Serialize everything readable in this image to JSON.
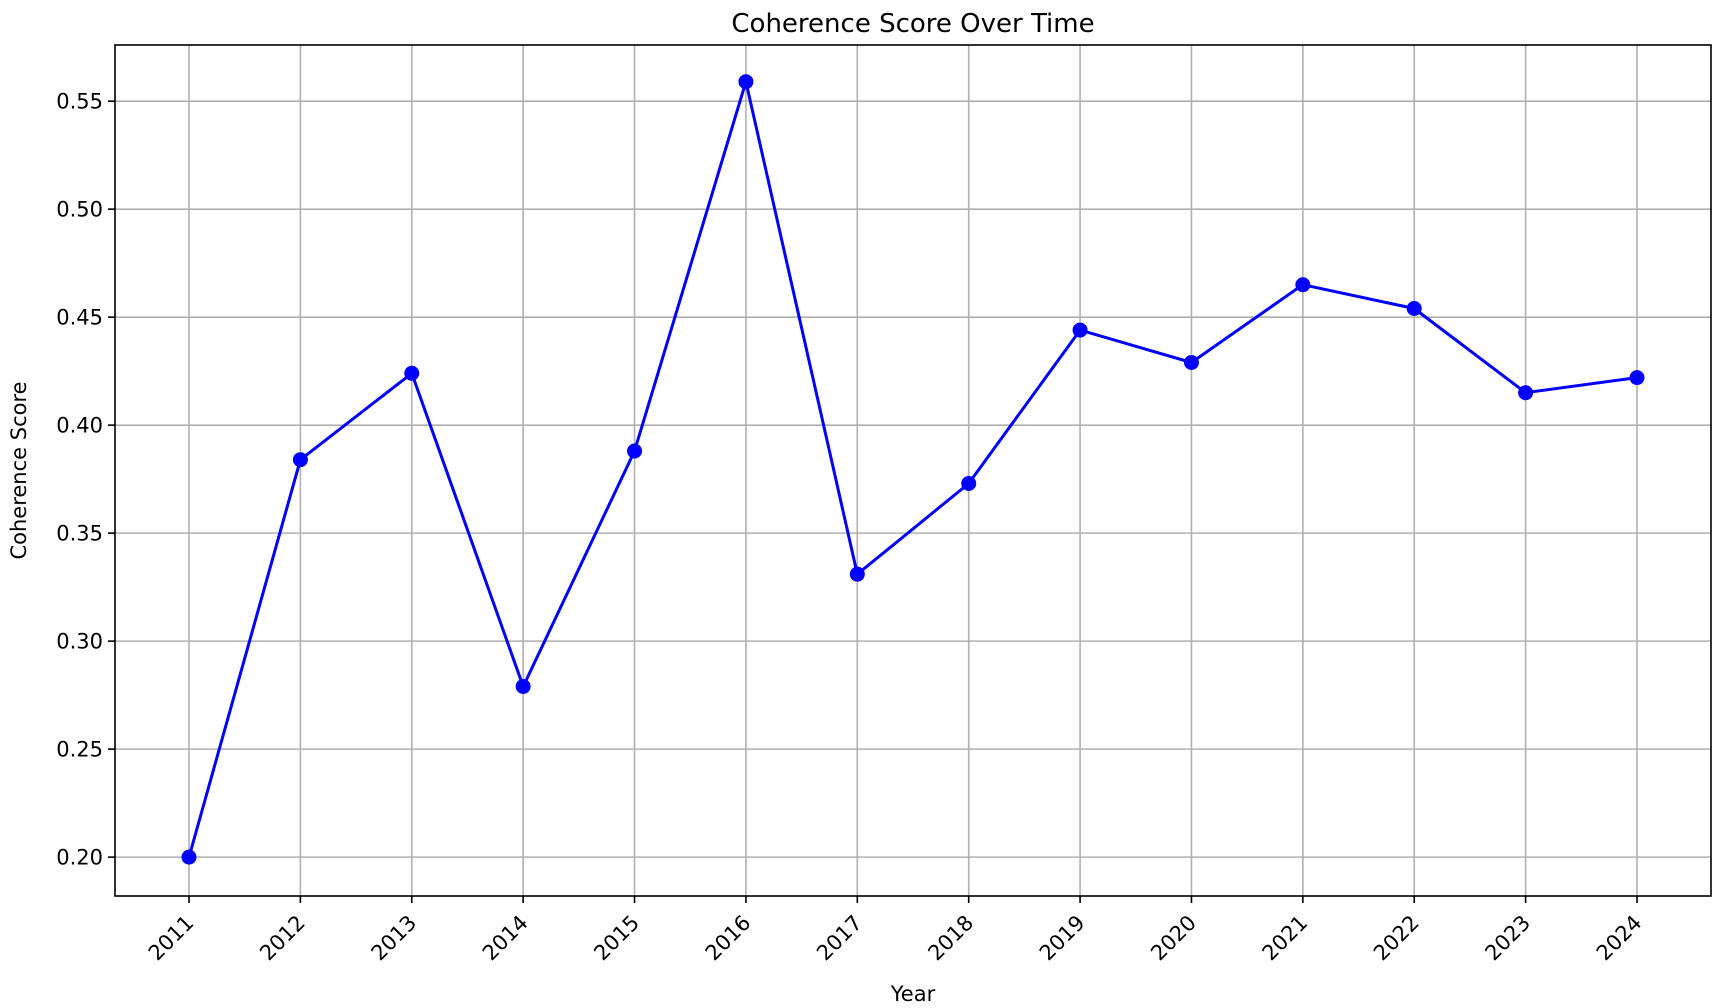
{
  "chart_data": {
    "type": "line",
    "title": "Coherence Score Over Time",
    "xlabel": "Year",
    "ylabel": "Coherence Score",
    "x": [
      "2011",
      "2012",
      "2013",
      "2014",
      "2015",
      "2016",
      "2017",
      "2018",
      "2019",
      "2020",
      "2021",
      "2022",
      "2023",
      "2024"
    ],
    "y_ticks": [
      "0.20",
      "0.25",
      "0.30",
      "0.35",
      "0.40",
      "0.45",
      "0.50",
      "0.55"
    ],
    "ylim": [
      0.182,
      0.576
    ],
    "grid": true,
    "marker": "circle",
    "series": [
      {
        "color": "#0000ff",
        "values": [
          0.2,
          0.384,
          0.424,
          0.279,
          0.388,
          0.559,
          0.331,
          0.373,
          0.444,
          0.429,
          0.465,
          0.454,
          0.415,
          0.422
        ]
      }
    ]
  }
}
